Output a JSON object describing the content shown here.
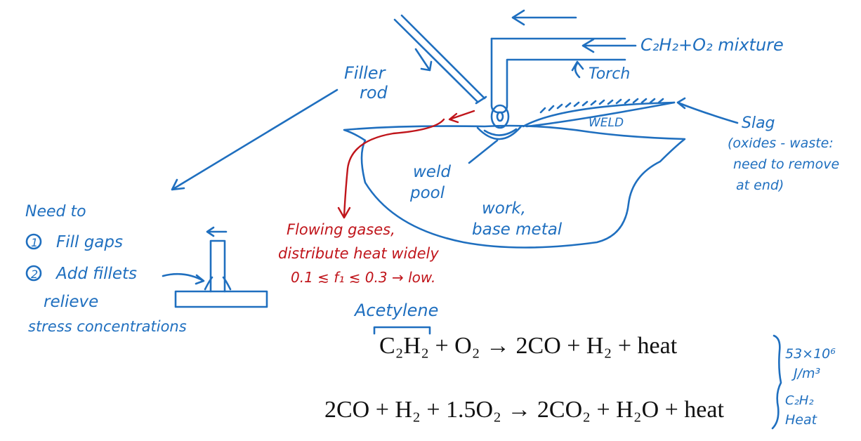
{
  "colors": {
    "ink_blue": "#1f6fbf",
    "ink_red": "#c0151b",
    "text": "#111111",
    "background": "#ffffff"
  },
  "labels": {
    "filler_rod": [
      "Filler",
      "rod"
    ],
    "mixture": "C₂H₂+O₂ mixture",
    "torch": "Torch",
    "weld": "WELD",
    "slag": [
      "Slag",
      "(oxides - waste:",
      "need to remove",
      "at end)"
    ],
    "weld_pool": [
      "weld",
      "pool"
    ],
    "work": [
      "work,",
      "base metal"
    ],
    "need_to": "Need to",
    "fill_gaps": "Fill gaps",
    "add_fillets": "Add fillets",
    "relieve": [
      "relieve",
      "stress concentrations"
    ],
    "flowing_gases": [
      "Flowing gases,",
      "distribute heat widely",
      "0.1 ≲ f₁ ≲ 0.3 → low."
    ],
    "acetylene": "Acetylene",
    "heat_value": [
      "53×10⁶",
      "J/m³",
      "C₂H₂",
      "Heat"
    ]
  },
  "equations": {
    "eq1": "C₂H₂ + O₂ → 2CO + H₂ + heat",
    "eq2": "2CO + H₂ + 1.5O₂ → 2CO₂ + H₂O + heat"
  }
}
